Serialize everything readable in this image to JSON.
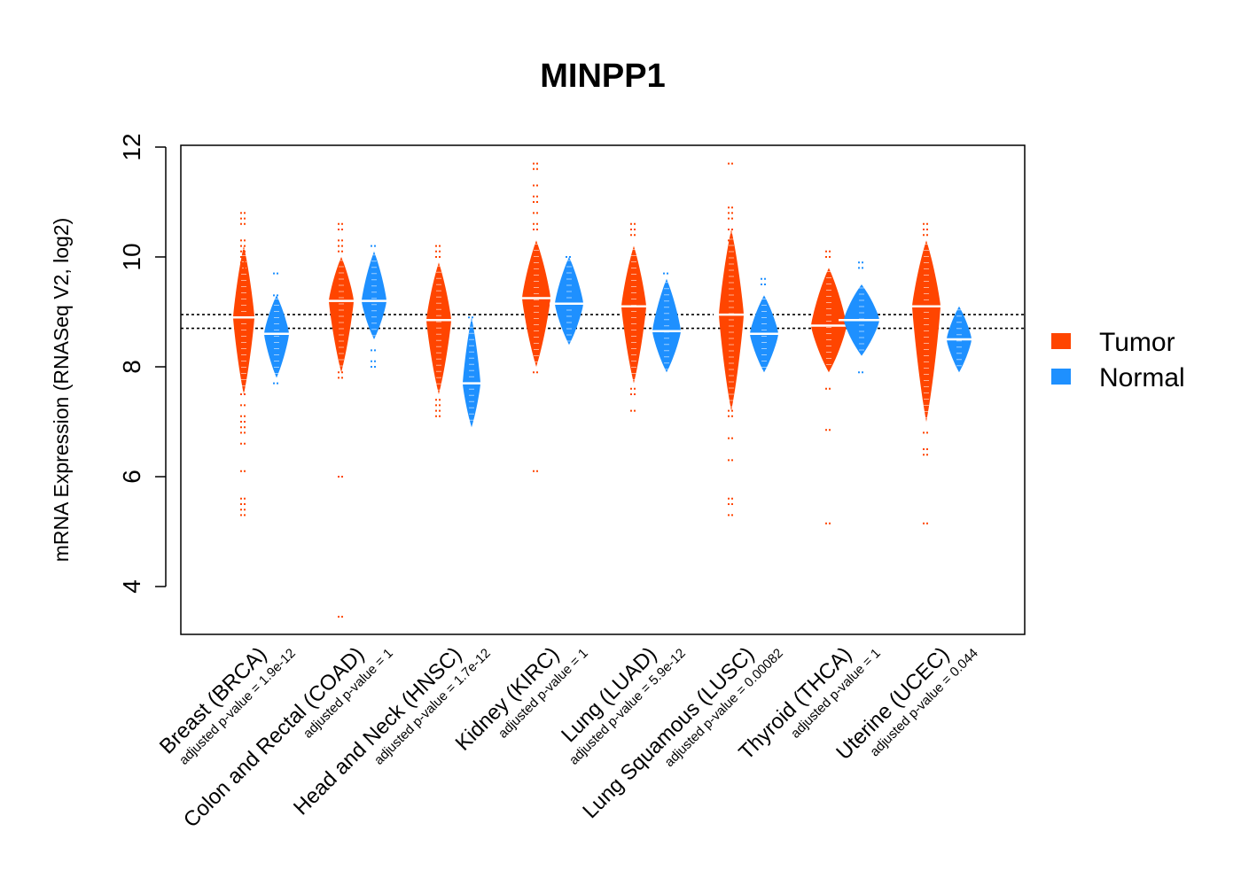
{
  "chart_data": {
    "type": "beanplot",
    "title": "MINPP1",
    "xlabel": "",
    "ylabel": "mRNA Expression (RNASeq V2, log2)",
    "ylim": [
      3.2,
      12.1
    ],
    "yticks": [
      4,
      6,
      8,
      10,
      12
    ],
    "reference_lines": [
      8.7,
      8.95
    ],
    "legend": {
      "placement": "right",
      "entries": [
        {
          "label": "Tumor",
          "color": "#FF4500"
        },
        {
          "label": "Normal",
          "color": "#1E90FF"
        }
      ]
    },
    "categories": [
      {
        "label": "Breast (BRCA)",
        "pvalue_text": "adjusted p-value = 1.9e-12",
        "tumor": {
          "median": 8.9,
          "width": 12,
          "core": [
            7.5,
            10.2
          ],
          "points": [
            10.8,
            10.7,
            10.6,
            10.3,
            10.2,
            10.1,
            10.0,
            9.9,
            9.8,
            7.5,
            7.3,
            7.1,
            7.0,
            6.9,
            6.8,
            6.6,
            6.1,
            5.6,
            5.5,
            5.4,
            5.3
          ]
        },
        "normal": {
          "median": 8.6,
          "width": 14,
          "core": [
            7.8,
            9.3
          ],
          "points": [
            9.7,
            9.3,
            7.7
          ]
        }
      },
      {
        "label": "Colon and Rectal (COAD)",
        "pvalue_text": "adjusted p-value = 1",
        "tumor": {
          "median": 9.2,
          "width": 14,
          "core": [
            7.9,
            10.0
          ],
          "points": [
            10.6,
            10.5,
            10.3,
            10.2,
            10.1,
            7.9,
            7.8,
            6.0,
            3.45
          ]
        },
        "normal": {
          "median": 9.2,
          "width": 14,
          "core": [
            8.5,
            10.1
          ],
          "points": [
            10.2,
            8.3,
            8.1,
            8.0
          ]
        }
      },
      {
        "label": "Head and Neck (HNSC)",
        "pvalue_text": "adjusted p-value = 1.7e-12",
        "tumor": {
          "median": 8.85,
          "width": 14,
          "core": [
            7.5,
            9.9
          ],
          "points": [
            10.2,
            10.1,
            10.0,
            7.4,
            7.3,
            7.2,
            7.1
          ]
        },
        "normal": {
          "median": 7.7,
          "width": 10,
          "core": [
            6.9,
            8.9
          ],
          "points": [
            8.9
          ]
        }
      },
      {
        "label": "Kidney (KIRC)",
        "pvalue_text": "adjusted p-value = 1",
        "tumor": {
          "median": 9.25,
          "width": 16,
          "core": [
            8.0,
            10.3
          ],
          "points": [
            11.7,
            11.6,
            11.3,
            11.1,
            11.0,
            10.8,
            10.6,
            10.5,
            7.9,
            6.1
          ]
        },
        "normal": {
          "median": 9.15,
          "width": 16,
          "core": [
            8.4,
            10.0
          ],
          "points": [
            10.0
          ]
        }
      },
      {
        "label": "Lung (LUAD)",
        "pvalue_text": "adjusted p-value = 5.9e-12",
        "tumor": {
          "median": 9.1,
          "width": 14,
          "core": [
            7.7,
            10.2
          ],
          "points": [
            10.6,
            10.5,
            10.4,
            7.6,
            7.5,
            7.2
          ]
        },
        "normal": {
          "median": 8.65,
          "width": 16,
          "core": [
            7.9,
            9.6
          ],
          "points": [
            9.7
          ]
        }
      },
      {
        "label": "Lung Squamous (LUSC)",
        "pvalue_text": "adjusted p-value = 0.00082",
        "tumor": {
          "median": 8.95,
          "width": 14,
          "core": [
            7.2,
            10.5
          ],
          "points": [
            11.7,
            10.9,
            10.8,
            10.7,
            10.5,
            10.3,
            7.2,
            7.1,
            6.7,
            6.3,
            5.6,
            5.5,
            5.3
          ]
        },
        "normal": {
          "median": 8.6,
          "width": 16,
          "core": [
            7.9,
            9.3
          ],
          "points": [
            9.6,
            9.5
          ]
        }
      },
      {
        "label": "Thyroid (THCA)",
        "pvalue_text": "adjusted p-value = 1",
        "tumor": {
          "median": 8.75,
          "width": 20,
          "core": [
            7.9,
            9.8
          ],
          "points": [
            10.1,
            10.0,
            7.6,
            6.85,
            5.15
          ]
        },
        "normal": {
          "median": 8.85,
          "width": 20,
          "core": [
            8.2,
            9.5
          ],
          "points": [
            9.9,
            9.8,
            7.9
          ]
        }
      },
      {
        "label": "Uterine (UCEC)",
        "pvalue_text": "adjusted p-value = 0.044",
        "tumor": {
          "median": 9.1,
          "width": 16,
          "core": [
            7.0,
            10.3
          ],
          "points": [
            10.6,
            10.5,
            10.4,
            6.8,
            6.5,
            6.4,
            5.15
          ]
        },
        "normal": {
          "median": 8.5,
          "width": 14,
          "core": [
            7.9,
            9.1
          ],
          "points": []
        }
      }
    ]
  }
}
